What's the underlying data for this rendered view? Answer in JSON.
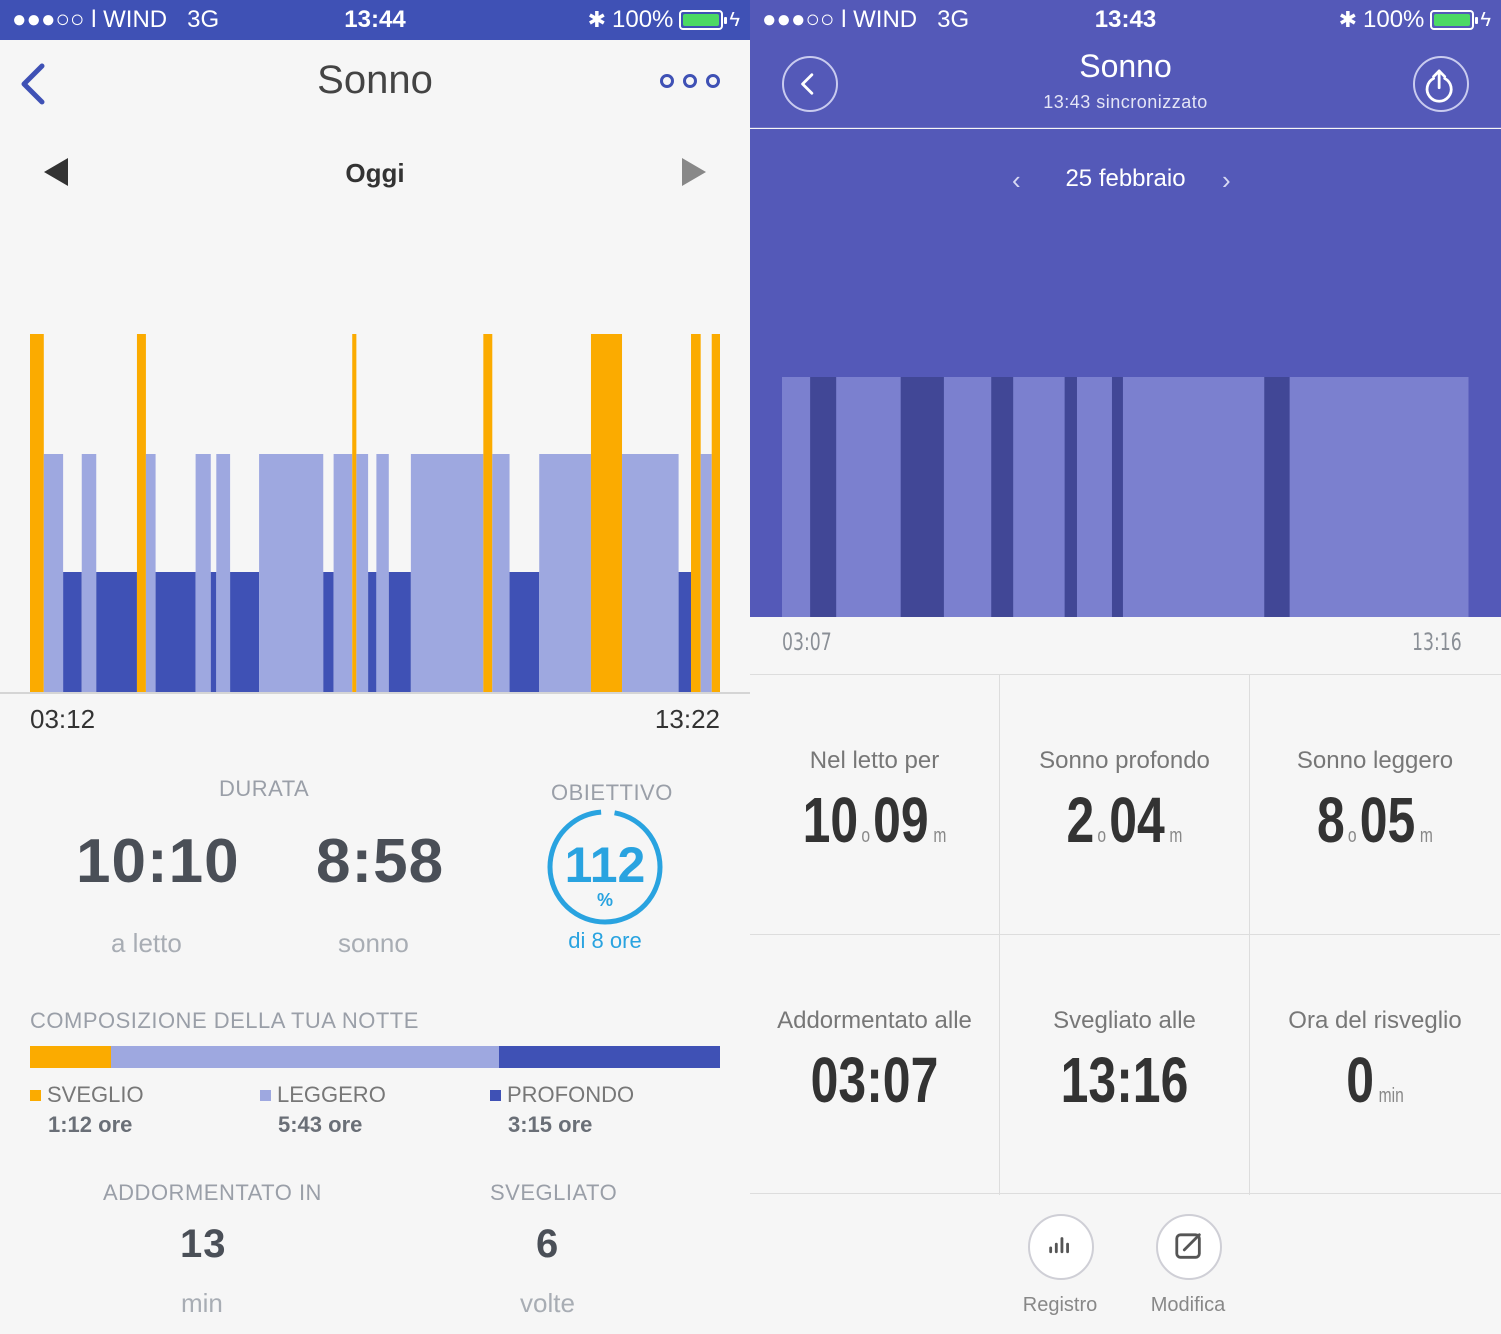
{
  "left": {
    "status": {
      "carrier": "●●●○○ l WIND   3G",
      "time": "13:44",
      "battery": "100%"
    },
    "nav": {
      "title": "Sonno"
    },
    "day": {
      "label": "Oggi"
    },
    "chart_data": {
      "type": "bar",
      "x_start": "03:12",
      "x_end": "13:22",
      "levels": [
        "profondo",
        "leggero",
        "sveglio"
      ],
      "segments": [
        {
          "start": 0.0,
          "end": 0.02,
          "level": "sveglio"
        },
        {
          "start": 0.02,
          "end": 0.048,
          "level": "leggero"
        },
        {
          "start": 0.048,
          "end": 0.075,
          "level": "profondo"
        },
        {
          "start": 0.075,
          "end": 0.096,
          "level": "leggero"
        },
        {
          "start": 0.096,
          "end": 0.155,
          "level": "profondo"
        },
        {
          "start": 0.155,
          "end": 0.168,
          "level": "sveglio"
        },
        {
          "start": 0.168,
          "end": 0.182,
          "level": "leggero"
        },
        {
          "start": 0.182,
          "end": 0.24,
          "level": "profondo"
        },
        {
          "start": 0.24,
          "end": 0.262,
          "level": "leggero"
        },
        {
          "start": 0.262,
          "end": 0.27,
          "level": "profondo"
        },
        {
          "start": 0.27,
          "end": 0.29,
          "level": "leggero"
        },
        {
          "start": 0.29,
          "end": 0.332,
          "level": "profondo"
        },
        {
          "start": 0.332,
          "end": 0.425,
          "level": "leggero"
        },
        {
          "start": 0.425,
          "end": 0.44,
          "level": "profondo"
        },
        {
          "start": 0.44,
          "end": 0.467,
          "level": "leggero"
        },
        {
          "start": 0.467,
          "end": 0.473,
          "level": "sveglio"
        },
        {
          "start": 0.473,
          "end": 0.49,
          "level": "leggero"
        },
        {
          "start": 0.49,
          "end": 0.502,
          "level": "profondo"
        },
        {
          "start": 0.502,
          "end": 0.52,
          "level": "leggero"
        },
        {
          "start": 0.52,
          "end": 0.552,
          "level": "profondo"
        },
        {
          "start": 0.552,
          "end": 0.657,
          "level": "leggero"
        },
        {
          "start": 0.657,
          "end": 0.67,
          "level": "sveglio"
        },
        {
          "start": 0.67,
          "end": 0.695,
          "level": "leggero"
        },
        {
          "start": 0.695,
          "end": 0.738,
          "level": "profondo"
        },
        {
          "start": 0.738,
          "end": 0.813,
          "level": "leggero"
        },
        {
          "start": 0.813,
          "end": 0.858,
          "level": "sveglio"
        },
        {
          "start": 0.858,
          "end": 0.94,
          "level": "leggero"
        },
        {
          "start": 0.94,
          "end": 0.958,
          "level": "profondo"
        },
        {
          "start": 0.958,
          "end": 0.972,
          "level": "sveglio"
        },
        {
          "start": 0.972,
          "end": 0.988,
          "level": "leggero"
        },
        {
          "start": 0.988,
          "end": 1.0,
          "level": "sveglio"
        }
      ],
      "colors": {
        "sveglio": "#fbab00",
        "leggero": "#9ea8e0",
        "profondo": "#3f51b5"
      }
    },
    "stats": {
      "durata_label": "DURATA",
      "obiettivo_label": "OBIETTIVO",
      "a_letto_value": "10:10",
      "a_letto_label": "a letto",
      "sonno_value": "8:58",
      "sonno_label": "sonno",
      "goal_percent": "112",
      "goal_percent_sign": "%",
      "goal_sub": "di 8 ore",
      "goal_fraction": 1.12
    },
    "composition": {
      "title": "COMPOSIZIONE DELLA TUA NOTTE",
      "items": [
        {
          "name": "SVEGLIO",
          "value": "1:12 ore",
          "color": "#fbab00",
          "fraction": 0.118
        },
        {
          "name": "LEGGERO",
          "value": "5:43 ore",
          "color": "#9ea8e0",
          "fraction": 0.562
        },
        {
          "name": "PROFONDO",
          "value": "3:15 ore",
          "color": "#3f51b5",
          "fraction": 0.32
        }
      ]
    },
    "extra": {
      "fell_asleep_label": "ADDORMENTATO IN",
      "fell_asleep_value": "13",
      "fell_asleep_unit": "min",
      "awake_label": "SVEGLIATO",
      "awake_value": "6",
      "awake_unit": "volte"
    }
  },
  "right": {
    "status": {
      "carrier": "●●●○○ l WIND   3G",
      "time": "13:43",
      "battery": "100%"
    },
    "header": {
      "title": "Sonno",
      "subtitle": "13:43 sincronizzato"
    },
    "date": {
      "label": "25 febbraio",
      "prev": "‹",
      "next": "›"
    },
    "chart_data": {
      "type": "bar",
      "x_start": "03:07",
      "x_end": "13:16",
      "segments": [
        {
          "start": 0.0,
          "end": 0.041,
          "level": "leggero"
        },
        {
          "start": 0.041,
          "end": 0.079,
          "level": "profondo"
        },
        {
          "start": 0.079,
          "end": 0.173,
          "level": "leggero"
        },
        {
          "start": 0.173,
          "end": 0.236,
          "level": "profondo"
        },
        {
          "start": 0.236,
          "end": 0.305,
          "level": "leggero"
        },
        {
          "start": 0.305,
          "end": 0.337,
          "level": "profondo"
        },
        {
          "start": 0.337,
          "end": 0.412,
          "level": "leggero"
        },
        {
          "start": 0.412,
          "end": 0.43,
          "level": "profondo"
        },
        {
          "start": 0.43,
          "end": 0.481,
          "level": "leggero"
        },
        {
          "start": 0.481,
          "end": 0.497,
          "level": "profondo"
        },
        {
          "start": 0.497,
          "end": 0.703,
          "level": "leggero"
        },
        {
          "start": 0.703,
          "end": 0.74,
          "level": "profondo"
        },
        {
          "start": 0.74,
          "end": 1.0,
          "level": "leggero"
        }
      ],
      "colors": {
        "leggero": "#7b80cf",
        "profondo": "#414796"
      }
    },
    "cells": [
      {
        "caption": "Nel letto per",
        "h": "10",
        "hs": "o",
        "m": "09",
        "mu": "m"
      },
      {
        "caption": "Sonno profondo",
        "h": "2",
        "hs": "o",
        "m": "04",
        "mu": "m"
      },
      {
        "caption": "Sonno leggero",
        "h": "8",
        "hs": "o",
        "m": "05",
        "mu": "m"
      },
      {
        "caption": "Addormentato alle",
        "h": "03:07",
        "hs": "",
        "m": "",
        "mu": ""
      },
      {
        "caption": "Svegliato alle",
        "h": "13:16",
        "hs": "",
        "m": "",
        "mu": ""
      },
      {
        "caption": "Ora del risveglio",
        "h": "0",
        "hs": "",
        "m": "",
        "mu": "min"
      }
    ],
    "actions": [
      {
        "label": "Registro",
        "icon": "bar-chart-icon"
      },
      {
        "label": "Modifica",
        "icon": "edit-icon"
      }
    ]
  }
}
